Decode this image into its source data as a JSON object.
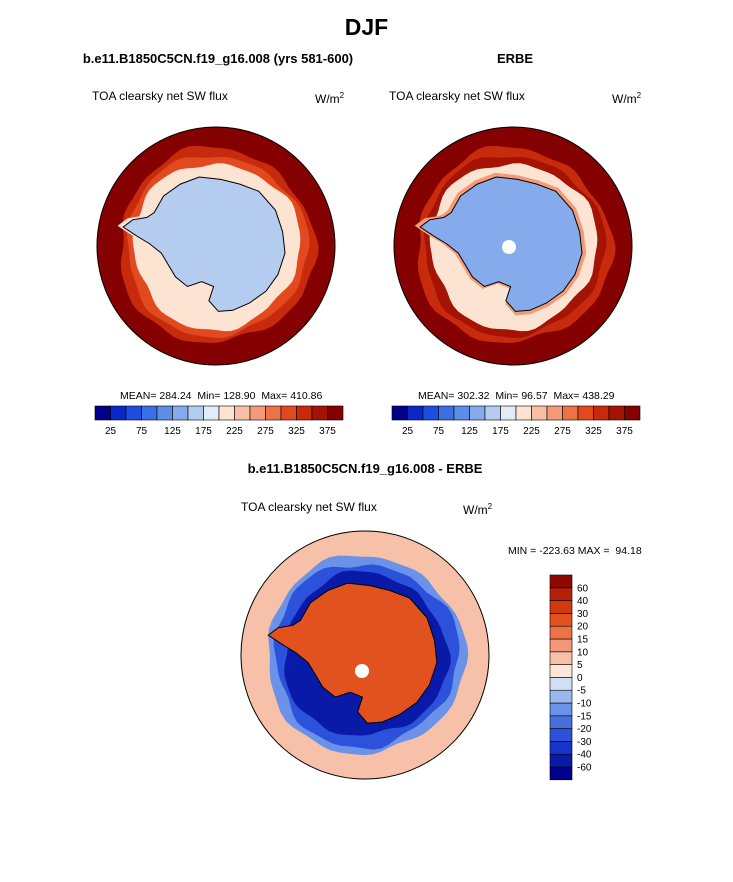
{
  "figure": {
    "title": "DJF"
  },
  "colors": {
    "sequential": [
      "#00008a",
      "#0a28c8",
      "#1e4ee0",
      "#3a6fe6",
      "#5c8ee8",
      "#86abec",
      "#b4ccf0",
      "#e2ecf8",
      "#fde3d2",
      "#f8bfa4",
      "#f49a78",
      "#ee7248",
      "#e2491e",
      "#c82a0c",
      "#a51305",
      "#850000"
    ],
    "diverging": [
      "#00008a",
      "#0a1aa8",
      "#1634c8",
      "#2c52dc",
      "#4670e0",
      "#6a92e8",
      "#9ab7ee",
      "#d0e0f4",
      "#fde6d8",
      "#f7c0a8",
      "#f29878",
      "#ec7248",
      "#e2521e",
      "#d03a0c",
      "#b62006",
      "#8e0a00"
    ],
    "land_fill_value_model": "#9fb4ee",
    "ocean_fill_value": "#8e0000"
  },
  "chart_data": [
    {
      "type": "heatmap",
      "projection": "south-polar-stereographic",
      "title": "b.e11.B1850C5CN.f19_g16.008 (yrs 581-600)",
      "variable": "TOA clearsky net SW flux",
      "units": "W/m",
      "units_exp": "2",
      "stats": {
        "mean_label": "MEAN=",
        "mean": "284.24",
        "min_label": "Min=",
        "min": "128.90",
        "max_label": "Max=",
        "max": "410.86"
      },
      "colorbar": {
        "orientation": "horizontal",
        "levels": [
          25,
          50,
          75,
          100,
          125,
          150,
          175,
          200,
          225,
          250,
          275,
          300,
          325,
          350,
          375
        ],
        "tick_labels": [
          "25",
          "75",
          "125",
          "175",
          "225",
          "275",
          "325",
          "375"
        ]
      },
      "regions": {
        "antarctica": 165,
        "coast": 215,
        "sea_ice_edge": 300,
        "open_ocean": 400
      }
    },
    {
      "type": "heatmap",
      "projection": "south-polar-stereographic",
      "title": "ERBE",
      "variable": "TOA clearsky net SW flux",
      "units": "W/m",
      "units_exp": "2",
      "stats": {
        "mean_label": "MEAN=",
        "mean": "302.32",
        "min_label": "Min=",
        "min": "96.57",
        "max_label": "Max=",
        "max": "438.29"
      },
      "colorbar": {
        "orientation": "horizontal",
        "levels": [
          25,
          50,
          75,
          100,
          125,
          150,
          175,
          200,
          225,
          250,
          275,
          300,
          325,
          350,
          375
        ],
        "tick_labels": [
          "25",
          "75",
          "125",
          "175",
          "225",
          "275",
          "325",
          "375"
        ]
      },
      "regions": {
        "antarctica": 130,
        "coast": 250,
        "sea_ice_edge": 360,
        "open_ocean": 400
      }
    },
    {
      "type": "heatmap",
      "projection": "south-polar-stereographic",
      "title": "b.e11.B1850C5CN.f19_g16.008 - ERBE",
      "variable": "TOA clearsky net SW flux",
      "units": "W/m",
      "units_exp": "2",
      "stats": {
        "min_label": "MIN =",
        "min": "-223.63",
        "max_label": "MAX =",
        "max": "94.18"
      },
      "colorbar": {
        "orientation": "vertical",
        "levels": [
          -60,
          -40,
          -30,
          -20,
          -15,
          -10,
          -5,
          0,
          5,
          10,
          15,
          20,
          30,
          40,
          60
        ],
        "tick_labels": [
          "-60",
          "-40",
          "-30",
          "-20",
          "-15",
          "-10",
          "-5",
          "0",
          "5",
          "10",
          "15",
          "20",
          "30",
          "40",
          "60"
        ]
      },
      "regions": {
        "antarctica": 25,
        "sea_ice_zone": -60,
        "open_ocean": 5
      }
    }
  ]
}
